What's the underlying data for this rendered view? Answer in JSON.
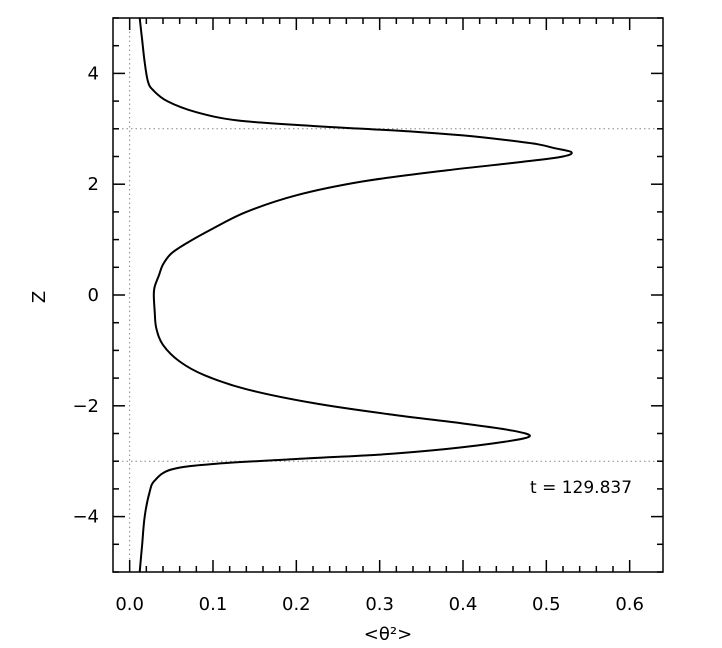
{
  "chart_data": {
    "type": "line",
    "xlabel": "<θ²>",
    "ylabel": "Z",
    "xlim": [
      -0.02,
      0.64
    ],
    "ylim": [
      -5,
      5
    ],
    "x_ticks": [
      "0.0",
      "0.1",
      "0.2",
      "0.3",
      "0.4",
      "0.5",
      "0.6"
    ],
    "y_ticks": [
      "−4",
      "−2",
      "0",
      "2",
      "4"
    ],
    "reference_lines": {
      "vertical_x": 0.0,
      "horizontal_z": [
        3.0,
        -3.0
      ],
      "style": "dotted"
    },
    "annotation": "t = 129.837",
    "series": [
      {
        "x": [
          0.012,
          0.015,
          0.018,
          0.022,
          0.028,
          0.045,
          0.08,
          0.13,
          0.22,
          0.28,
          0.34,
          0.4,
          0.45,
          0.49,
          0.51,
          0.53,
          0.52,
          0.47,
          0.38,
          0.28,
          0.2,
          0.14,
          0.1,
          0.07,
          0.05,
          0.04,
          0.035,
          0.03,
          0.029,
          0.03,
          0.032,
          0.04,
          0.06,
          0.09,
          0.14,
          0.22,
          0.31,
          0.4,
          0.46,
          0.48,
          0.45,
          0.38,
          0.3,
          0.2,
          0.1,
          0.05,
          0.03,
          0.024,
          0.018,
          0.015,
          0.012
        ],
        "y": [
          5.0,
          4.6,
          4.2,
          3.85,
          3.7,
          3.5,
          3.3,
          3.15,
          3.05,
          3.0,
          2.95,
          2.88,
          2.8,
          2.72,
          2.65,
          2.58,
          2.5,
          2.4,
          2.25,
          2.05,
          1.8,
          1.5,
          1.2,
          0.95,
          0.75,
          0.55,
          0.35,
          0.15,
          0.0,
          -0.3,
          -0.6,
          -0.9,
          -1.2,
          -1.45,
          -1.7,
          -1.95,
          -2.15,
          -2.32,
          -2.45,
          -2.55,
          -2.65,
          -2.78,
          -2.88,
          -2.96,
          -3.05,
          -3.15,
          -3.35,
          -3.55,
          -4.0,
          -4.5,
          -5.0
        ]
      }
    ]
  }
}
